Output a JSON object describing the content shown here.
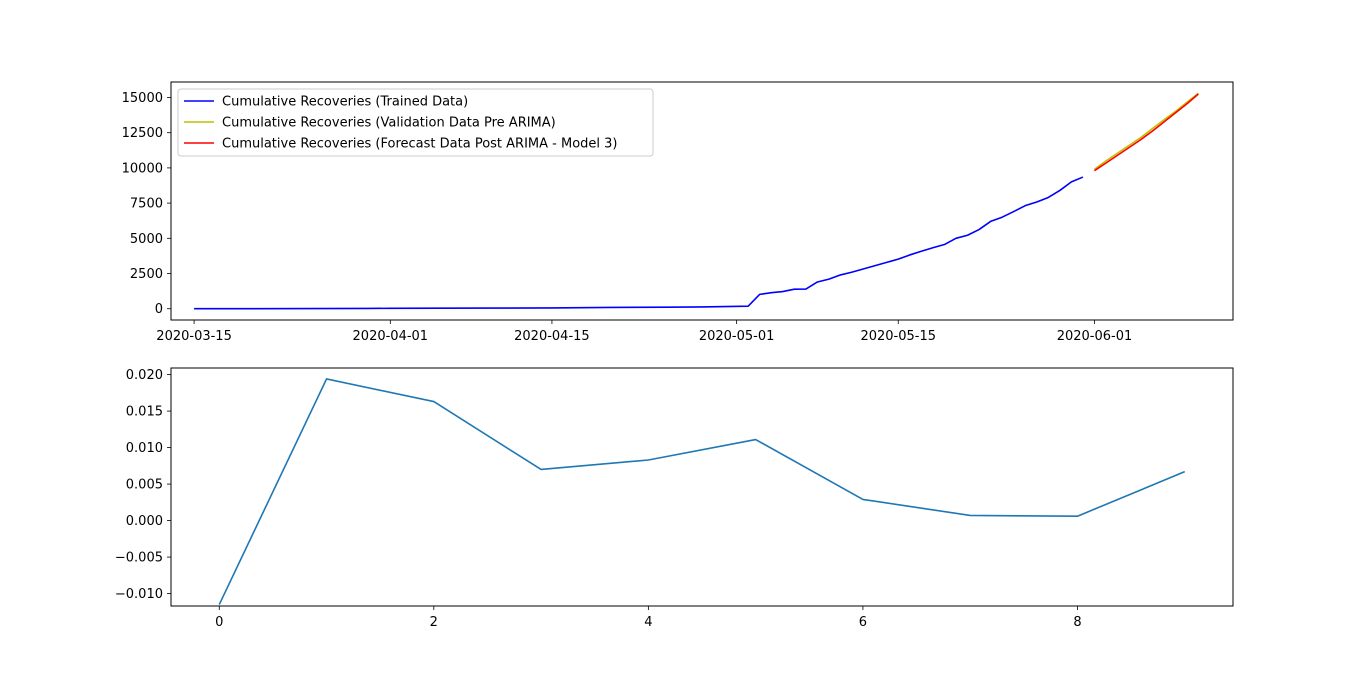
{
  "chart_data": [
    {
      "type": "line",
      "title": "",
      "xlabel": "",
      "ylabel": "",
      "x_axis_type": "date",
      "xlim": [
        "2020-03-13",
        "2020-06-13"
      ],
      "ylim": [
        -800,
        16100
      ],
      "x_ticks": [
        "2020-03-15",
        "2020-04-01",
        "2020-04-15",
        "2020-05-01",
        "2020-05-15",
        "2020-06-01"
      ],
      "y_ticks": [
        0,
        2500,
        5000,
        7500,
        10000,
        12500,
        15000
      ],
      "y_tick_labels": [
        "0",
        "2500",
        "5000",
        "7500",
        "10000",
        "12500",
        "15000"
      ],
      "grid": false,
      "legend_position": "upper left",
      "series": [
        {
          "name": "Cumulative Recoveries (Trained Data)",
          "color": "#0000ff",
          "points": [
            [
              "2020-03-15",
              0
            ],
            [
              "2020-03-20",
              3
            ],
            [
              "2020-03-25",
              12
            ],
            [
              "2020-03-30",
              20
            ],
            [
              "2020-04-01",
              30
            ],
            [
              "2020-04-05",
              40
            ],
            [
              "2020-04-10",
              48
            ],
            [
              "2020-04-15",
              60
            ],
            [
              "2020-04-20",
              90
            ],
            [
              "2020-04-25",
              110
            ],
            [
              "2020-04-28",
              130
            ],
            [
              "2020-05-02",
              180
            ],
            [
              "2020-05-03",
              1020
            ],
            [
              "2020-05-04",
              1140
            ],
            [
              "2020-05-05",
              1220
            ],
            [
              "2020-05-06",
              1390
            ],
            [
              "2020-05-07",
              1395
            ],
            [
              "2020-05-08",
              1900
            ],
            [
              "2020-05-09",
              2100
            ],
            [
              "2020-05-10",
              2400
            ],
            [
              "2020-05-11",
              2600
            ],
            [
              "2020-05-12",
              2830
            ],
            [
              "2020-05-13",
              3060
            ],
            [
              "2020-05-14",
              3290
            ],
            [
              "2020-05-15",
              3520
            ],
            [
              "2020-05-16",
              3820
            ],
            [
              "2020-05-17",
              4080
            ],
            [
              "2020-05-18",
              4330
            ],
            [
              "2020-05-19",
              4560
            ],
            [
              "2020-05-20",
              5000
            ],
            [
              "2020-05-21",
              5220
            ],
            [
              "2020-05-22",
              5620
            ],
            [
              "2020-05-23",
              6200
            ],
            [
              "2020-05-24",
              6500
            ],
            [
              "2020-05-25",
              6900
            ],
            [
              "2020-05-26",
              7320
            ],
            [
              "2020-05-27",
              7580
            ],
            [
              "2020-05-28",
              7900
            ],
            [
              "2020-05-29",
              8400
            ],
            [
              "2020-05-30",
              9010
            ],
            [
              "2020-05-31",
              9350
            ]
          ]
        },
        {
          "name": "Cumulative Recoveries (Validation Data Pre ARIMA)",
          "color": "#bfbf00",
          "points": [
            [
              "2020-06-01",
              9900
            ],
            [
              "2020-06-02",
              10500
            ],
            [
              "2020-06-03",
              11050
            ],
            [
              "2020-06-04",
              11600
            ],
            [
              "2020-06-05",
              12150
            ],
            [
              "2020-06-06",
              12780
            ],
            [
              "2020-06-07",
              13400
            ],
            [
              "2020-06-08",
              14000
            ],
            [
              "2020-06-09",
              14650
            ],
            [
              "2020-06-10",
              15300
            ]
          ]
        },
        {
          "name": "Cumulative Recoveries (Forecast Data Post ARIMA - Model 3)",
          "color": "#ff0000",
          "points": [
            [
              "2020-06-01",
              9800
            ],
            [
              "2020-06-02",
              10350
            ],
            [
              "2020-06-03",
              10900
            ],
            [
              "2020-06-04",
              11450
            ],
            [
              "2020-06-05",
              12000
            ],
            [
              "2020-06-06",
              12600
            ],
            [
              "2020-06-07",
              13250
            ],
            [
              "2020-06-08",
              13900
            ],
            [
              "2020-06-09",
              14550
            ],
            [
              "2020-06-10",
              15250
            ]
          ]
        }
      ]
    },
    {
      "type": "line",
      "title": "",
      "xlabel": "",
      "ylabel": "",
      "xlim": [
        -0.45,
        9.45
      ],
      "ylim": [
        -0.0117,
        0.0209
      ],
      "x_ticks": [
        0,
        2,
        4,
        6,
        8
      ],
      "x_tick_labels": [
        "0",
        "2",
        "4",
        "6",
        "8"
      ],
      "y_ticks": [
        -0.01,
        -0.005,
        0,
        0.005,
        0.01,
        0.015,
        0.02
      ],
      "y_tick_labels": [
        "−0.010",
        "−0.005",
        "0.000",
        "0.005",
        "0.010",
        "0.015",
        "0.020"
      ],
      "grid": false,
      "series": [
        {
          "color": "#1f77b4",
          "x": [
            0,
            1,
            2,
            3,
            4,
            5,
            6,
            7,
            8,
            9
          ],
          "y": [
            -0.0115,
            0.0194,
            0.0163,
            0.007,
            0.0083,
            0.0111,
            0.0029,
            0.0007,
            0.0006,
            0.0067
          ]
        }
      ]
    }
  ]
}
